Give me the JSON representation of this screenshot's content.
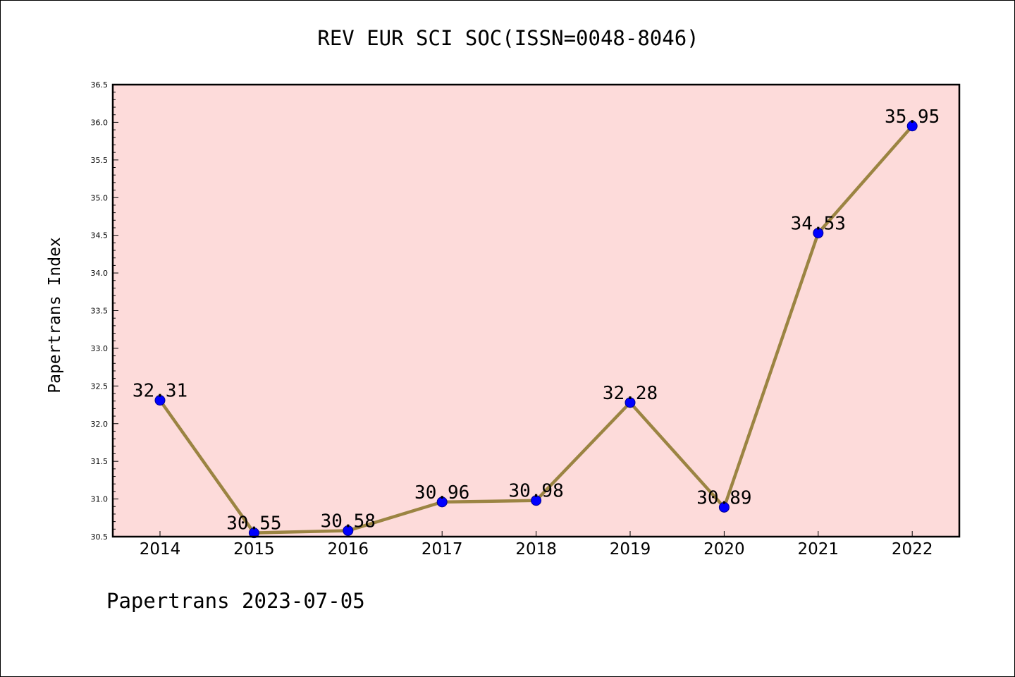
{
  "chart_data": {
    "type": "line",
    "title": "REV EUR SCI SOC(ISSN=0048-8046)",
    "xlabel": "",
    "ylabel": "Papertrans Index",
    "categories": [
      "2014",
      "2015",
      "2016",
      "2017",
      "2018",
      "2019",
      "2020",
      "2021",
      "2022"
    ],
    "series": [
      {
        "values": [
          32.31,
          30.55,
          30.58,
          30.96,
          30.98,
          32.28,
          30.89,
          34.53,
          35.95
        ],
        "labels": [
          "32.31",
          "30.55",
          "30.58",
          "30.96",
          "30.98",
          "32.28",
          "30.89",
          "34.53",
          "35.95"
        ],
        "line_color": "#9b8442",
        "marker_color": "#0000ff"
      }
    ],
    "ylim": [
      30.5,
      36.5
    ],
    "yticks": [
      "30.5",
      "31.0",
      "31.5",
      "32.0",
      "32.5",
      "33.0",
      "33.5",
      "34.0",
      "34.5",
      "35.0",
      "35.5",
      "36.0",
      "36.5"
    ],
    "plot_background": "#fddbda",
    "grid": false,
    "legend": "none"
  },
  "footer": "Papertrans 2023-07-05"
}
